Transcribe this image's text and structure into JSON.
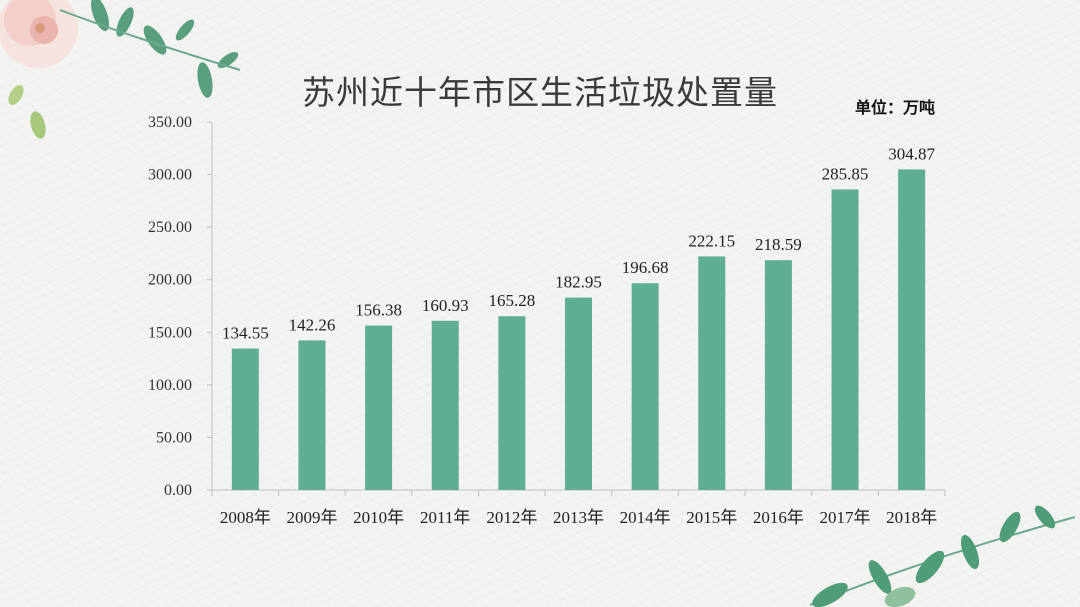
{
  "slide": {
    "title": "苏州近十年市区生活垃圾处置量",
    "unit": "单位：万吨"
  },
  "colors": {
    "bar": "#5fae92",
    "axis": "#bfbfbf",
    "leaf": "#4a9a7a",
    "flower": "#f4d6d2"
  },
  "chart_data": {
    "type": "bar",
    "title": "苏州近十年市区生活垃圾处置量",
    "xlabel": "",
    "ylabel": "",
    "unit": "单位：万吨",
    "categories": [
      "2008年",
      "2009年",
      "2010年",
      "2011年",
      "2012年",
      "2013年",
      "2014年",
      "2015年",
      "2016年",
      "2017年",
      "2018年"
    ],
    "values": [
      134.55,
      142.26,
      156.38,
      160.93,
      165.28,
      182.95,
      196.68,
      222.15,
      218.59,
      285.85,
      304.87
    ],
    "value_labels": [
      "134.55",
      "142.26",
      "156.38",
      "160.93",
      "165.28",
      "182.95",
      "196.68",
      "222.15",
      "218.59",
      "285.85",
      "304.87"
    ],
    "ylim": [
      0,
      350
    ],
    "yticks": [
      "0.00",
      "50.00",
      "100.00",
      "150.00",
      "200.00",
      "250.00",
      "300.00",
      "350.00"
    ],
    "grid": false,
    "legend": "none"
  }
}
